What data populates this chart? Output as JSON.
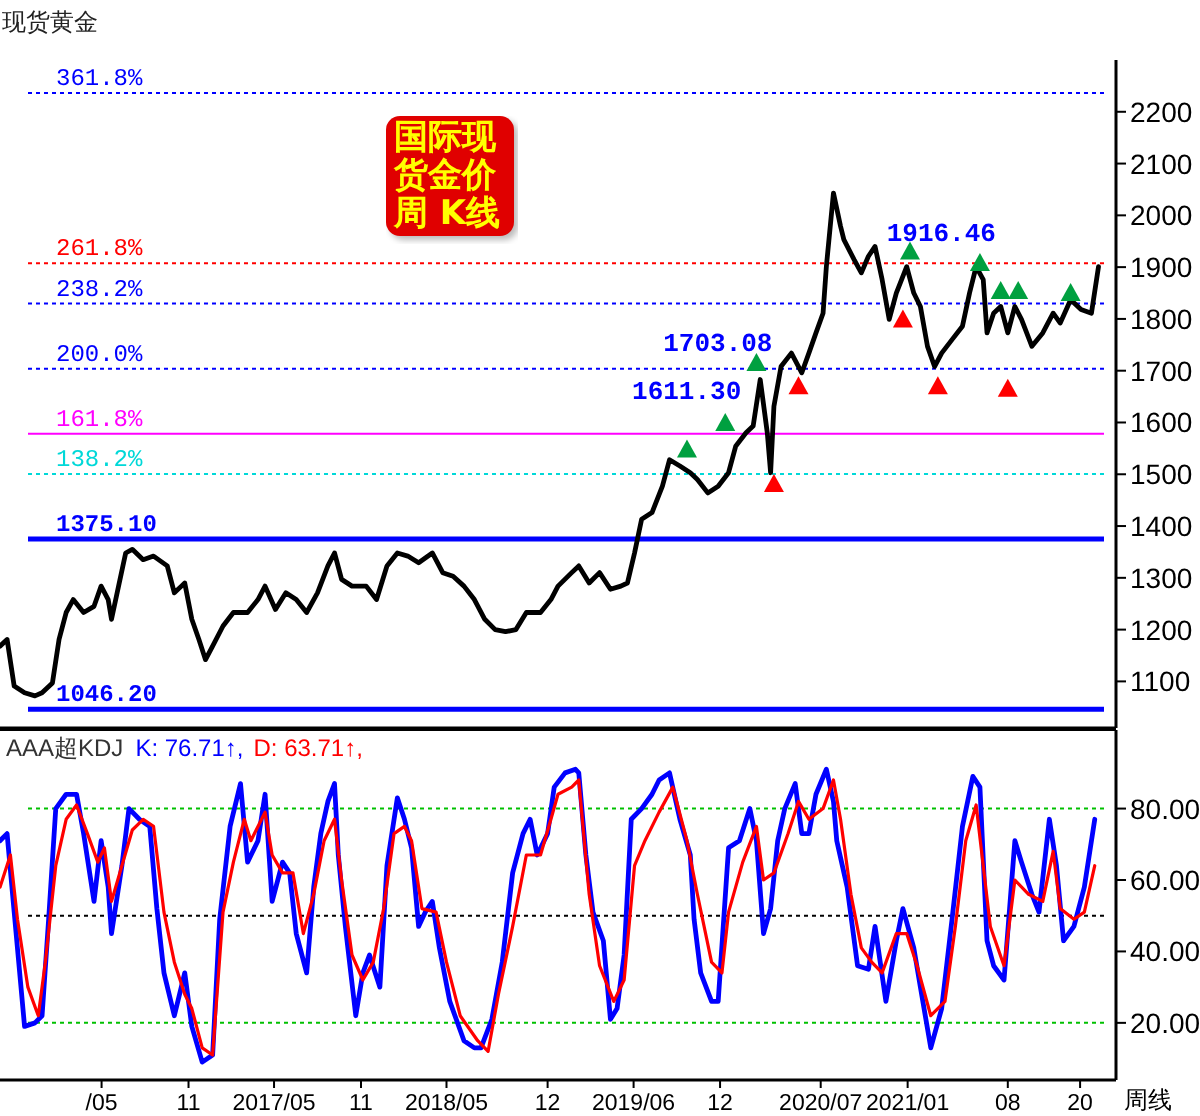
{
  "chart_data": [
    {
      "type": "line",
      "title": "现货黄金",
      "subtitle": "国际现货金价周 K线",
      "x": [
        "2015-09-29",
        "2015-10-14",
        "2015-10-29",
        "2015-11-20",
        "2015-12-12",
        "2015-12-27",
        "2016-01-18",
        "2016-02-01",
        "2016-02-16",
        "2016-03-02",
        "2016-03-24",
        "2016-04-15",
        "2016-04-30",
        "2016-05-15",
        "2016-05-22",
        "2016-06-06",
        "2016-06-21",
        "2016-07-05",
        "2016-07-28",
        "2016-08-19",
        "2016-09-17",
        "2016-10-02",
        "2016-10-17",
        "2016-10-24",
        "2016-11-08",
        "2016-11-23",
        "2016-12-07",
        "2016-12-22",
        "2017-01-13",
        "2017-02-04",
        "2017-03-06",
        "2017-03-28",
        "2017-04-12",
        "2017-05-04",
        "2017-05-26",
        "2017-06-17",
        "2017-07-09",
        "2017-08-01",
        "2017-08-23",
        "2017-09-06",
        "2017-09-21",
        "2017-10-13",
        "2017-11-12",
        "2017-12-04",
        "2017-12-26",
        "2018-01-17",
        "2018-02-08",
        "2018-03-03",
        "2018-04-01",
        "2018-04-23",
        "2018-05-15",
        "2018-06-07",
        "2018-06-29",
        "2018-07-21",
        "2018-08-12",
        "2018-09-03",
        "2018-09-25",
        "2018-10-17",
        "2018-11-16",
        "2018-12-08",
        "2018-12-23",
        "2019-01-21",
        "2019-02-05",
        "2019-02-27",
        "2019-03-21",
        "2019-04-13",
        "2019-05-05",
        "2019-05-19",
        "2019-06-03",
        "2019-06-18",
        "2019-07-10",
        "2019-08-01",
        "2019-08-16",
        "2019-09-07",
        "2019-09-29",
        "2019-10-14",
        "2019-11-05",
        "2019-11-27",
        "2019-12-19",
        "2020-01-03",
        "2020-01-25",
        "2020-02-09",
        "2020-02-24",
        "2020-03-10",
        "2020-03-17",
        "2020-03-24",
        "2020-04-08",
        "2020-04-30",
        "2020-05-22",
        "2020-06-06",
        "2020-06-21",
        "2020-07-06",
        "2020-07-13",
        "2020-07-28",
        "2020-08-12",
        "2020-08-19",
        "2020-09-10",
        "2020-09-25",
        "2020-10-10",
        "2020-10-24",
        "2020-11-08",
        "2020-11-23",
        "2020-12-08",
        "2020-12-30",
        "2021-01-14",
        "2021-01-28",
        "2021-02-12",
        "2021-02-27",
        "2021-03-14",
        "2021-04-05",
        "2021-04-27",
        "2021-05-12",
        "2021-05-26",
        "2021-06-10",
        "2021-06-18",
        "2021-07-02",
        "2021-07-17",
        "2021-08-01",
        "2021-08-16",
        "2021-08-30",
        "2021-09-21",
        "2021-10-14",
        "2021-11-05",
        "2021-11-20",
        "2021-12-12",
        "2022-01-03",
        "2022-01-25",
        "2022-02-09"
      ],
      "series": [
        {
          "color": "#000000",
          "values": [
            1168,
            1181,
            1091,
            1078,
            1072,
            1078,
            1097,
            1181,
            1233,
            1258,
            1233,
            1245,
            1284,
            1258,
            1220,
            1284,
            1348,
            1355,
            1335,
            1342,
            1323,
            1271,
            1284,
            1290,
            1220,
            1181,
            1142,
            1168,
            1207,
            1233,
            1233,
            1258,
            1284,
            1239,
            1271,
            1258,
            1233,
            1271,
            1323,
            1348,
            1297,
            1284,
            1284,
            1258,
            1323,
            1348,
            1342,
            1329,
            1348,
            1310,
            1303,
            1284,
            1258,
            1220,
            1200,
            1196,
            1200,
            1233,
            1233,
            1258,
            1284,
            1310,
            1323,
            1290,
            1310,
            1278,
            1284,
            1290,
            1348,
            1413,
            1426,
            1477,
            1528,
            1516,
            1503,
            1490,
            1464,
            1477,
            1503,
            1554,
            1580,
            1593,
            1683,
            1580,
            1503,
            1631,
            1708,
            1734,
            1696,
            1734,
            1773,
            1811,
            1901,
            2043,
            1979,
            1953,
            1914,
            1889,
            1921,
            1940,
            1876,
            1799,
            1850,
            1901,
            1850,
            1824,
            1747,
            1708,
            1734,
            1760,
            1786,
            1850,
            1901,
            1876,
            1773,
            1811,
            1824,
            1773,
            1824,
            1799,
            1747,
            1773,
            1811,
            1792,
            1837,
            1818,
            1811,
            1901
          ]
        },
        {
          "type": "scatter",
          "color": "#00a040",
          "marker": "triangle",
          "x": [
            "2019-09-22",
            "2019-12-12",
            "2020-02-16",
            "2021-01-06",
            "2021-06-03",
            "2021-07-17",
            "2021-08-23",
            "2021-12-12"
          ],
          "values": [
            1548,
            1599,
            1715,
            1930,
            1908,
            1854,
            1854,
            1850
          ]
        },
        {
          "type": "scatter",
          "color": "#ff0000",
          "marker": "triangle",
          "x": [
            "2020-03-24",
            "2020-05-15",
            "2020-12-22",
            "2021-03-06",
            "2021-08-01"
          ],
          "values": [
            1481,
            1670,
            1799,
            1670,
            1665
          ]
        }
      ],
      "xlim": [
        "2015-09-29",
        "2022-03-18"
      ],
      "ylim": [
        1010,
        2300
      ],
      "yticks": [
        1100,
        1200,
        1300,
        1400,
        1500,
        1600,
        1700,
        1800,
        1900,
        2000,
        2100,
        2200
      ],
      "tick_labels": "y",
      "ref_lines": [
        {
          "axis": "y",
          "value": 2236.2,
          "color": "#0000ff",
          "line_style": "dotted"
        },
        {
          "axis": "y",
          "value": 1907.3,
          "color": "#ff0000",
          "line_style": "dotted"
        },
        {
          "axis": "y",
          "value": 1829.6,
          "color": "#0000ff",
          "line_style": "dotted"
        },
        {
          "axis": "y",
          "value": 1704.0,
          "color": "#0000ff",
          "line_style": "dotted"
        },
        {
          "axis": "y",
          "value": 1578.4,
          "color": "#ff00ff",
          "line_style": "solid"
        },
        {
          "axis": "y",
          "value": 1500.7,
          "color": "#00d8d8",
          "line_style": "dotted"
        },
        {
          "axis": "y",
          "value": 1375.1,
          "label": "1375.10",
          "color": "#0000ff",
          "line_style": "solid"
        },
        {
          "axis": "y",
          "value": 1046.2,
          "label": "1046.20",
          "color": "#0000ff",
          "line_style": "solid"
        }
      ],
      "annotations": [
        {
          "text": "361.8%",
          "y": 2236.2
        },
        {
          "text": "261.8%",
          "y": 1907.3
        },
        {
          "text": "238.2%",
          "y": 1829.6
        },
        {
          "text": "200.0%",
          "y": 1704.0
        },
        {
          "text": "161.8%",
          "y": 1578.4
        },
        {
          "text": "138.2%",
          "y": 1500.7
        },
        {
          "text": "1611.30",
          "x": "2019-12-12",
          "y": 1611.3
        },
        {
          "text": "1703.08",
          "x": "2020-02-16",
          "y": 1703.08
        },
        {
          "text": "1916.46",
          "x": "2021-06-03",
          "y": 1916.46
        }
      ]
    },
    {
      "type": "line",
      "title": "AAA超KDJ",
      "xlabel": "周线",
      "legend": "top left",
      "series": [
        {
          "name": "K: 76.71↑,",
          "color": "#0000ff",
          "x": [
            "2015-09-29",
            "2015-10-14",
            "2015-10-29",
            "2015-11-20",
            "2015-12-12",
            "2015-12-27",
            "2016-01-10",
            "2016-01-25",
            "2016-02-16",
            "2016-03-09",
            "2016-03-24",
            "2016-04-15",
            "2016-04-30",
            "2016-05-15",
            "2016-05-22",
            "2016-06-13",
            "2016-06-28",
            "2016-07-20",
            "2016-08-11",
            "2016-08-26",
            "2016-09-10",
            "2016-10-02",
            "2016-10-24",
            "2016-11-08",
            "2016-11-30",
            "2016-12-22",
            "2017-01-06",
            "2017-01-28",
            "2017-02-19",
            "2017-03-06",
            "2017-03-28",
            "2017-04-12",
            "2017-04-27",
            "2017-05-19",
            "2017-06-03",
            "2017-06-17",
            "2017-07-09",
            "2017-07-24",
            "2017-08-08",
            "2017-08-23",
            "2017-09-06",
            "2017-09-14",
            "2017-09-29",
            "2017-10-21",
            "2017-11-05",
            "2017-11-19",
            "2017-12-11",
            "2017-12-26",
            "2018-01-17",
            "2018-02-01",
            "2018-02-16",
            "2018-03-03",
            "2018-03-17",
            "2018-04-01",
            "2018-04-16",
            "2018-05-08",
            "2018-06-07",
            "2018-06-29",
            "2018-07-13",
            "2018-08-05",
            "2018-08-27",
            "2018-09-18",
            "2018-10-10",
            "2018-10-25",
            "2018-11-09",
            "2018-12-01",
            "2018-12-15",
            "2019-01-07",
            "2019-01-29",
            "2019-02-05",
            "2019-02-20",
            "2019-03-07",
            "2019-03-29",
            "2019-04-13",
            "2019-04-27",
            "2019-05-12",
            "2019-05-27",
            "2019-06-18",
            "2019-07-10",
            "2019-07-25",
            "2019-08-16",
            "2019-09-07",
            "2019-09-29",
            "2019-10-07",
            "2019-10-21",
            "2019-11-13",
            "2019-11-27",
            "2019-12-19",
            "2020-01-11",
            "2020-02-02",
            "2020-02-16",
            "2020-03-02",
            "2020-03-17",
            "2020-04-01",
            "2020-04-16",
            "2020-05-08",
            "2020-05-22",
            "2020-06-06",
            "2020-06-21",
            "2020-07-13",
            "2020-07-28",
            "2020-08-04",
            "2020-08-26",
            "2020-09-17",
            "2020-10-10",
            "2020-10-24",
            "2020-11-16",
            "2020-12-08",
            "2020-12-22",
            "2021-01-14",
            "2021-01-28",
            "2021-02-19",
            "2021-03-14",
            "2021-04-05",
            "2021-04-27",
            "2021-05-19",
            "2021-06-03",
            "2021-06-18",
            "2021-07-02",
            "2021-07-24",
            "2021-08-16",
            "2021-08-30",
            "2021-09-21",
            "2021-10-06",
            "2021-10-28",
            "2021-11-12",
            "2021-11-27",
            "2021-12-19",
            "2022-01-10",
            "2022-02-01"
          ],
          "values": [
            71,
            73,
            51,
            19,
            20,
            22,
            49,
            80,
            84,
            84,
            73,
            54,
            71,
            58,
            45,
            64,
            80,
            77,
            75,
            52,
            34,
            22,
            34,
            19,
            9,
            11,
            49,
            75,
            87,
            65,
            71,
            84,
            54,
            65,
            62,
            45,
            34,
            58,
            73,
            82,
            87,
            67,
            47,
            22,
            34,
            39,
            30,
            64,
            83,
            77,
            69,
            47,
            51,
            54,
            41,
            26,
            15,
            13,
            13,
            21,
            37,
            62,
            73,
            77,
            67,
            73,
            86,
            90,
            91,
            90,
            67,
            51,
            43,
            21,
            24,
            39,
            77,
            80,
            84,
            88,
            90,
            77,
            67,
            49,
            34,
            26,
            26,
            69,
            71,
            80,
            71,
            45,
            52,
            71,
            80,
            87,
            73,
            73,
            84,
            91,
            82,
            71,
            58,
            36,
            35,
            47,
            26,
            43,
            52,
            41,
            30,
            13,
            24,
            49,
            75,
            89,
            86,
            43,
            36,
            32,
            71,
            65,
            56,
            51,
            77,
            64,
            43,
            47,
            58,
            77
          ]
        },
        {
          "name": "D: 63.71↑,",
          "color": "#ff0000",
          "x": [
            "2015-09-29",
            "2015-10-21",
            "2015-11-05",
            "2015-11-27",
            "2015-12-19",
            "2016-01-03",
            "2016-01-25",
            "2016-02-16",
            "2016-03-09",
            "2016-04-01",
            "2016-04-23",
            "2016-05-07",
            "2016-05-22",
            "2016-06-13",
            "2016-07-05",
            "2016-07-28",
            "2016-08-19",
            "2016-09-10",
            "2016-10-02",
            "2016-10-24",
            "2016-11-08",
            "2016-11-30",
            "2016-12-22",
            "2017-01-13",
            "2017-02-04",
            "2017-02-27",
            "2017-03-13",
            "2017-03-28",
            "2017-04-12",
            "2017-04-27",
            "2017-05-19",
            "2017-06-10",
            "2017-07-02",
            "2017-07-24",
            "2017-08-15",
            "2017-09-06",
            "2017-09-21",
            "2017-10-13",
            "2017-11-05",
            "2017-11-27",
            "2017-12-19",
            "2018-01-10",
            "2018-02-01",
            "2018-02-16",
            "2018-03-10",
            "2018-04-09",
            "2018-05-01",
            "2018-05-30",
            "2018-07-06",
            "2018-07-28",
            "2018-08-19",
            "2018-09-18",
            "2018-10-17",
            "2018-11-16",
            "2018-12-08",
            "2018-12-23",
            "2019-01-21",
            "2019-02-05",
            "2019-02-27",
            "2019-03-21",
            "2019-04-20",
            "2019-05-12",
            "2019-06-03",
            "2019-06-25",
            "2019-07-25",
            "2019-08-23",
            "2019-09-22",
            "2019-10-14",
            "2019-11-13",
            "2019-12-05",
            "2019-12-19",
            "2020-01-18",
            "2020-02-16",
            "2020-03-02",
            "2020-03-24",
            "2020-04-23",
            "2020-05-15",
            "2020-06-06",
            "2020-07-06",
            "2020-07-28",
            "2020-08-12",
            "2020-09-03",
            "2020-09-25",
            "2020-10-17",
            "2020-11-08",
            "2020-12-08",
            "2020-12-30",
            "2021-01-21",
            "2021-02-19",
            "2021-03-21",
            "2021-04-12",
            "2021-05-04",
            "2021-05-26",
            "2021-06-10",
            "2021-06-25",
            "2021-07-24",
            "2021-08-16",
            "2021-09-14",
            "2021-10-14",
            "2021-11-05",
            "2021-11-20",
            "2021-12-19",
            "2022-01-10",
            "2022-02-01"
          ],
          "values": [
            58,
            67,
            49,
            30,
            22,
            37,
            64,
            77,
            81,
            73,
            65,
            69,
            54,
            64,
            74,
            77,
            75,
            51,
            37,
            28,
            24,
            13,
            11,
            51,
            65,
            77,
            71,
            75,
            79,
            67,
            62,
            62,
            45,
            56,
            71,
            77,
            60,
            39,
            32,
            37,
            52,
            73,
            75,
            71,
            52,
            51,
            37,
            22,
            15,
            12,
            28,
            47,
            67,
            67,
            77,
            84,
            86,
            88,
            56,
            36,
            26,
            32,
            64,
            71,
            79,
            86,
            71,
            56,
            37,
            34,
            51,
            65,
            75,
            60,
            62,
            73,
            82,
            77,
            80,
            88,
            77,
            56,
            41,
            37,
            34,
            45,
            45,
            36,
            22,
            26,
            47,
            71,
            81,
            64,
            47,
            36,
            60,
            56,
            54,
            68,
            52,
            49,
            51,
            64
          ]
        }
      ],
      "xlim": [
        "2015-09-29",
        "2022-03-18"
      ],
      "ylim": [
        4,
        102
      ],
      "yticks": [
        {
          "value": 20,
          "label": "20.00"
        },
        {
          "value": 40,
          "label": "40.00"
        },
        {
          "value": 60,
          "label": "60.00"
        },
        {
          "value": 80,
          "label": "80.00"
        }
      ],
      "xticks": [
        {
          "value": "2016-05-01",
          "label": "/05"
        },
        {
          "value": "2016-11-01",
          "label": "11"
        },
        {
          "value": "2017-05-01",
          "label": "2017/05"
        },
        {
          "value": "2017-11-01",
          "label": "11"
        },
        {
          "value": "2018-05-01",
          "label": "2018/05"
        },
        {
          "value": "2018-12-01",
          "label": "12"
        },
        {
          "value": "2019-06-01",
          "label": "2019/06"
        },
        {
          "value": "2019-12-01",
          "label": "12"
        },
        {
          "value": "2020-07-01",
          "label": "2020/07"
        },
        {
          "value": "2021-01-01",
          "label": "2021/01"
        },
        {
          "value": "2021-08-01",
          "label": "08"
        },
        {
          "value": "2022-01-01",
          "label": "20"
        }
      ],
      "ref_lines": [
        {
          "axis": "y",
          "value": 80,
          "color": "#00c000",
          "line_style": "dotted"
        },
        {
          "axis": "y",
          "value": 50,
          "color": "#000000",
          "line_style": "dotted"
        },
        {
          "axis": "y",
          "value": 20,
          "color": "#00c000",
          "line_style": "dotted"
        }
      ]
    }
  ]
}
